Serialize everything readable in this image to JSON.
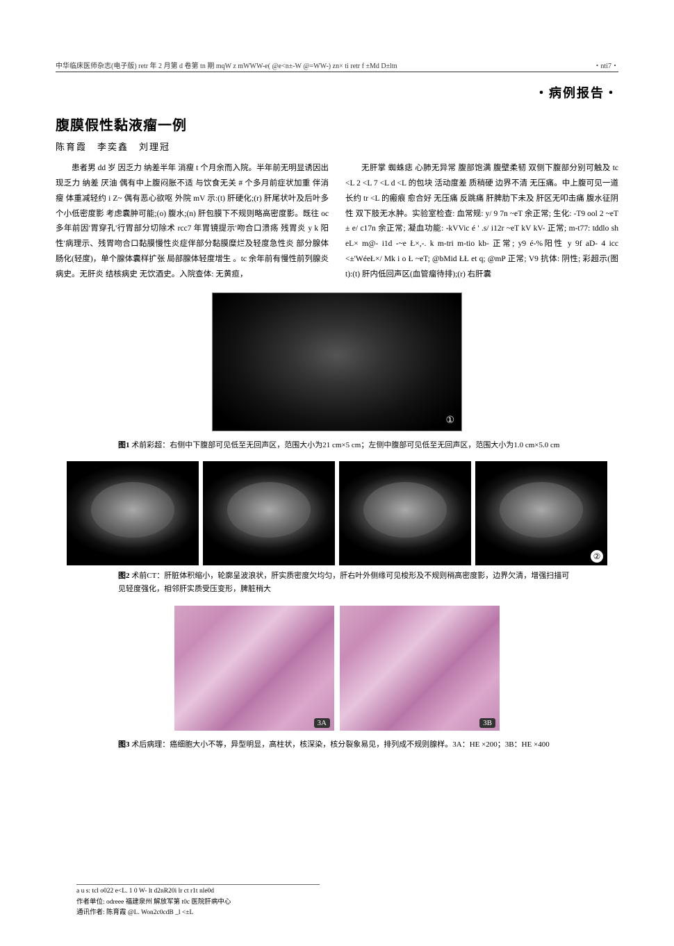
{
  "header": {
    "left": "中华临床医师杂志(电子版) retr 年 2 月第 d 卷第 tn 期  mqW z mWWW-e( @e<n±-W @=WW-)  zn× ti retr f ±Md D±ltn",
    "right": "・nti7・"
  },
  "section_label": "・病例报告・",
  "title": "腹膜假性黏液瘤一例",
  "authors": "陈育霞　李奕鑫　刘理冠",
  "body": {
    "left": "患者男 dd 岁 因乏力 纳差半年 消瘦 t 个月余而入院。半年前无明显诱因出现乏力 纳差 厌油 偶有中上腹闷胀不适 与饮食无关 # 个多月前症状加重 伴消瘦 体重减轻约 i Z~ 偶有恶心欲呕 外院 mV 示:(t) 肝硬化;(r) 肝尾状叶及后叶多个小低密度影 考虑囊肿可能;(o) 腹水;(n) 肝包膜下不规则略高密度影。既往 oc 多年前因'胃穿孔'行胃部分切除术 rcc7 年胃镜提示'吻合口溃疡 残胃炎 y k 阳性'病理示、残胃吻合口黏膜慢性炎症伴部分黏膜糜烂及轻度急性炎 部分腺体肠化(轻度)，单个腺体囊样扩张 局部腺体轻度增生 。tc 余年前有慢性前列腺炎病史。无肝炎 结核病史 无饮酒史。入院查体: 无黄疸，",
    "right": "无肝掌 蜘蛛痣 心肺无异常 腹部饱满 腹壁柔韧 双侧下腹部分别可触及 tc <L 2 <L 7 <L d <L 的包块 活动度差 质稍硬 边界不清 无压痛。中上腹可见一道长约 tr <L 的瘢痕 愈合好 无压痛 反跳痛 肝脾肋下未及 肝区无叩击痛 腹水征阴性 双下肢无水肿。实验室检查: 血常规: y/ 9 7n ~eT 余正常; 生化: -T9 ool 2 ~eT  ± e/ c17n 余正常; 凝血功能: -kVVic é ' .s/ i12r ~eT kV kV- 正常; m-t77: tddlo sh eL× m@- i1d -~e Ł×,-. k m-tri m-tio kb- 正常; y9 é-%阳性 y 9f aD- 4 icc <±'WéeŁ×/ Mk i o Ł ~eT; @bMid ŁŁ et q; @mP 正常; V9 抗体: 阴性; 彩超示(图 t):(t) 肝内低回声区(血管瘤待排);(r) 右肝囊"
  },
  "figures": {
    "fig1": {
      "label": "图1",
      "caption": "术前彩超：右侧中下腹部可见低至无回声区，范围大小为21 cm×5 cm；左侧中腹部可见低至无回声区，范围大小为1.0 cm×5.0 cm"
    },
    "fig2": {
      "label": "图2",
      "caption": "术前CT：肝脏体积缩小，轮廓呈波浪状，肝实质密度欠均匀，肝右叶外侧缘可见梭形及不规则稍高密度影，边界欠清，增强扫描可见轻度强化，相邻肝实质受压变形，脾脏稍大",
      "badge": "②"
    },
    "fig3": {
      "label": "图3",
      "caption": "术后病理：癌细胞大小不等，异型明显，高柱状，核深染，核分裂象易见，排列成不规则腺样。3A：HE ×200；3B：HE ×400",
      "badge_a": "3A",
      "badge_b": "3B"
    }
  },
  "footer": {
    "line1": "a u s: tcl o022 e<L. 1 0 W- lt d2nR20i lr ct r1t nle0d",
    "line2": "作者单位: odreee  福建泉州 解放军第 t0c 医院肝病中心",
    "line3": "通讯作者: 陈育霞 @L. Won2c0cdB  _l <±L"
  }
}
